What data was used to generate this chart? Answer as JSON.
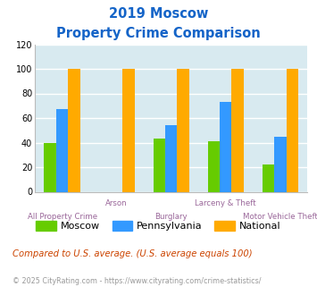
{
  "title_line1": "2019 Moscow",
  "title_line2": "Property Crime Comparison",
  "title_color": "#1464c8",
  "categories": [
    "All Property Crime",
    "Arson",
    "Burglary",
    "Larceny & Theft",
    "Motor Vehicle Theft"
  ],
  "series": {
    "Moscow": [
      40,
      0,
      43,
      41,
      22
    ],
    "Pennsylvania": [
      67,
      0,
      54,
      73,
      45
    ],
    "National": [
      100,
      100,
      100,
      100,
      100
    ]
  },
  "colors": {
    "Moscow": "#66cc00",
    "Pennsylvania": "#3399ff",
    "National": "#ffaa00"
  },
  "ylim": [
    0,
    120
  ],
  "yticks": [
    0,
    20,
    40,
    60,
    80,
    100,
    120
  ],
  "xlabel_color": "#996699",
  "plot_bg": "#d8eaf0",
  "grid_color": "#ffffff",
  "footnote1": "Compared to U.S. average. (U.S. average equals 100)",
  "footnote2": "© 2025 CityRating.com - https://www.cityrating.com/crime-statistics/",
  "footnote1_color": "#cc4400",
  "footnote2_color": "#999999",
  "series_names": [
    "Moscow",
    "Pennsylvania",
    "National"
  ]
}
